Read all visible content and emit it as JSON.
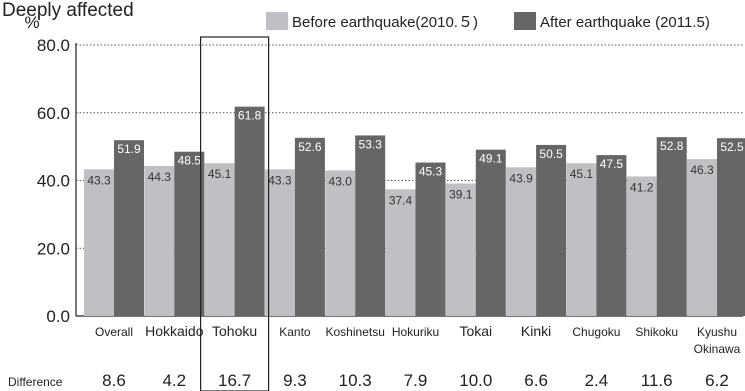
{
  "page_title": "Deeply affected",
  "chart_data": {
    "type": "bar",
    "unit_label": "%",
    "ylim": [
      0,
      80
    ],
    "yticks": [
      "0.0",
      "20.0",
      "40.0",
      "60.0",
      "80.0"
    ],
    "grid": true,
    "legend_position": "top-right",
    "categories": [
      "Overall",
      "Hokkaido",
      "Tohoku",
      "Kanto",
      "Koshinetsu",
      "Hokuriku",
      "Tokai",
      "Kinki",
      "Chugoku",
      "Shikoku",
      "Kyushu\nOkinawa"
    ],
    "highlight_category": "Tohoku",
    "series": [
      {
        "name": "Before earthquake(2010.５)",
        "color": "#c0c0c4",
        "values": [
          43.3,
          44.3,
          45.1,
          43.3,
          43.0,
          37.4,
          39.1,
          43.9,
          45.1,
          41.2,
          46.3
        ]
      },
      {
        "name": "After earthquake (2011.5)",
        "color": "#666666",
        "values": [
          51.9,
          48.5,
          61.8,
          52.6,
          53.3,
          45.3,
          49.1,
          50.5,
          47.5,
          52.8,
          52.5
        ]
      }
    ],
    "difference_label": "Difference",
    "differences": [
      "8.6",
      "4.2",
      "16.7",
      "9.3",
      "10.3",
      "7.9",
      "10.0",
      "6.6",
      "2.4",
      "11.6",
      "6.2"
    ]
  }
}
